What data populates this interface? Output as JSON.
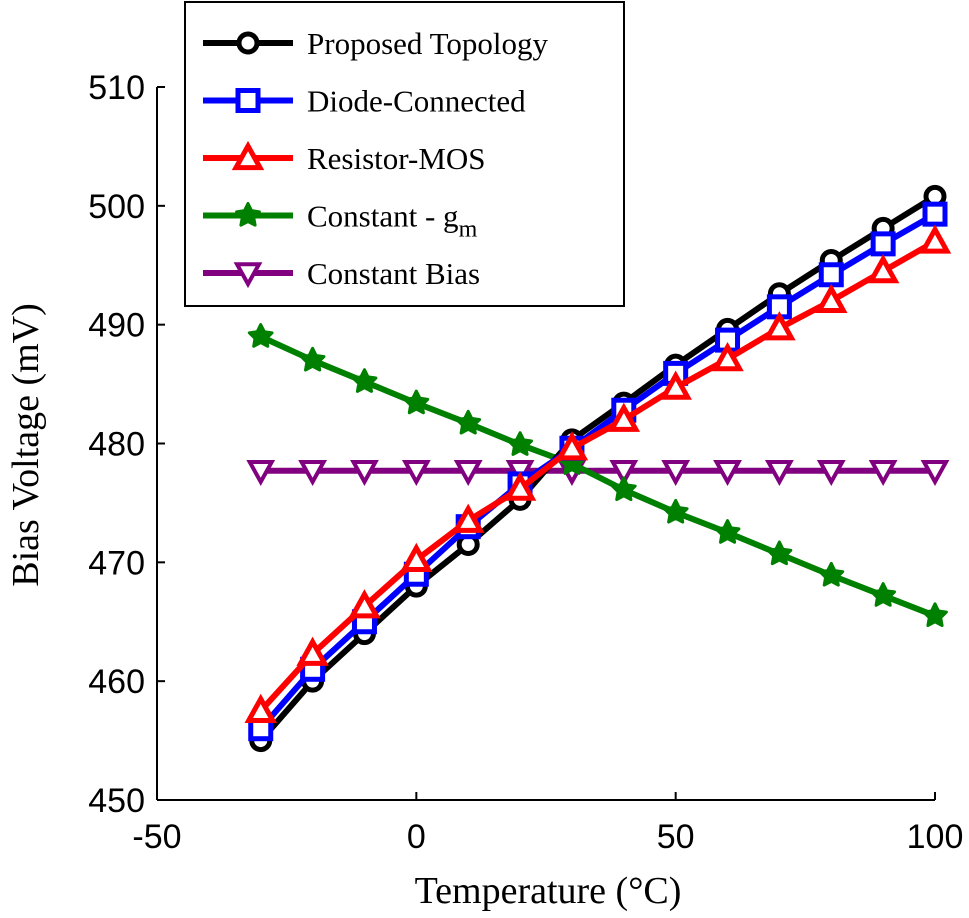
{
  "chart_data": {
    "type": "line",
    "title": "",
    "xlabel": "Temperature (°C)",
    "ylabel": "Bias Voltage (mV)",
    "xlim": [
      -50,
      100
    ],
    "ylim": [
      450,
      510
    ],
    "xticks": [
      -50,
      0,
      50,
      100
    ],
    "yticks": [
      450,
      460,
      470,
      480,
      490,
      500,
      510
    ],
    "x": [
      -30,
      -20,
      -10,
      0,
      10,
      20,
      30,
      40,
      50,
      60,
      70,
      80,
      90,
      100
    ],
    "legend_position": "top-left",
    "series": [
      {
        "name": "Proposed Topology",
        "color": "#000000",
        "marker": "circle",
        "values": [
          455.0,
          460.0,
          464.0,
          468.0,
          471.5,
          475.3,
          480.3,
          483.4,
          486.6,
          489.6,
          492.6,
          495.4,
          498.1,
          500.8
        ]
      },
      {
        "name": "Diode-Connected",
        "color": "#0000ff",
        "marker": "square",
        "values": [
          456.0,
          461.0,
          465.0,
          469.0,
          473.0,
          476.6,
          479.6,
          482.8,
          485.9,
          488.7,
          491.5,
          494.2,
          496.8,
          499.3
        ]
      },
      {
        "name": "Resistor-MOS",
        "color": "#ff0000",
        "marker": "triangle-up",
        "values": [
          457.5,
          462.3,
          466.3,
          470.2,
          473.5,
          476.2,
          479.6,
          482.0,
          484.7,
          487.1,
          489.7,
          492.0,
          494.5,
          497.0
        ]
      },
      {
        "name": "Constant - g",
        "name_subscript": "m",
        "color": "#008000",
        "marker": "star",
        "values": [
          489.0,
          487.0,
          485.2,
          483.4,
          481.7,
          479.9,
          478.3,
          476.1,
          474.2,
          472.5,
          470.7,
          468.9,
          467.2,
          465.5
        ]
      },
      {
        "name": "Constant Bias",
        "color": "#800080",
        "marker": "triangle-down",
        "values": [
          477.7,
          477.7,
          477.7,
          477.7,
          477.7,
          477.7,
          477.7,
          477.7,
          477.7,
          477.7,
          477.7,
          477.7,
          477.7,
          477.7
        ]
      }
    ]
  }
}
